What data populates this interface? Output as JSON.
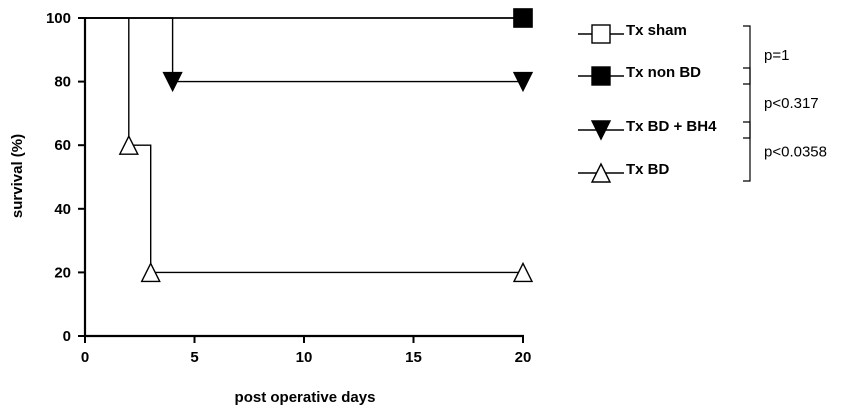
{
  "chart_data": {
    "type": "line",
    "style": "step survival curve",
    "xlabel": "post operative days",
    "ylabel": "survival (%)",
    "xlim": [
      0,
      20
    ],
    "ylim": [
      0,
      100
    ],
    "x_ticks": [
      0,
      5,
      10,
      15,
      20
    ],
    "y_ticks": [
      0,
      20,
      40,
      60,
      80,
      100
    ],
    "grid": false,
    "legend_position": "right",
    "series": [
      {
        "name": "Tx sham",
        "marker": "open-square",
        "color": "#000000",
        "points": [
          [
            0,
            100
          ],
          [
            20,
            100
          ]
        ]
      },
      {
        "name": "Tx non BD",
        "marker": "filled-square",
        "color": "#000000",
        "points": [
          [
            0,
            100
          ],
          [
            20,
            100
          ]
        ]
      },
      {
        "name": "Tx BD + BH4",
        "marker": "filled-triangle-down",
        "color": "#000000",
        "points": [
          [
            0,
            100
          ],
          [
            4,
            80
          ],
          [
            20,
            80
          ]
        ]
      },
      {
        "name": "Tx BD",
        "marker": "open-triangle-up",
        "color": "#000000",
        "points": [
          [
            0,
            100
          ],
          [
            2,
            60
          ],
          [
            3,
            20
          ],
          [
            20,
            20
          ]
        ]
      }
    ],
    "comparisons": [
      {
        "label": "p=1",
        "between": [
          "Tx sham",
          "Tx non BD"
        ]
      },
      {
        "label": "p<0.317",
        "between": [
          "Tx non BD",
          "Tx BD + BH4"
        ]
      },
      {
        "label": "p<0.0358",
        "between": [
          "Tx BD + BH4",
          "Tx BD"
        ]
      }
    ]
  }
}
